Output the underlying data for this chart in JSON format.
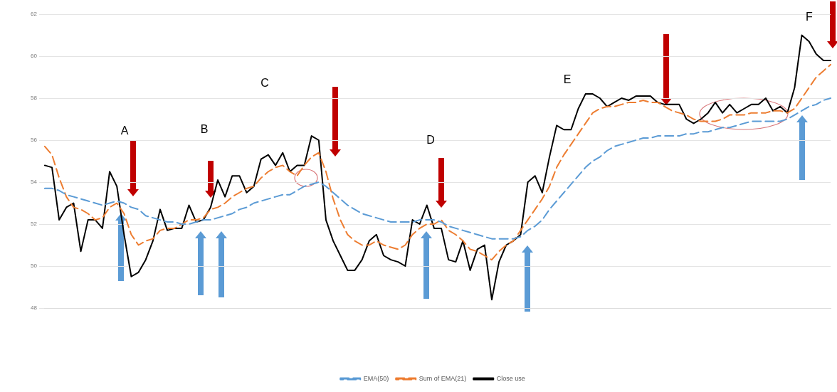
{
  "chart_data": {
    "type": "line",
    "categories": [
      null,
      null,
      null,
      null,
      null,
      null,
      null,
      null,
      null,
      null,
      null,
      null,
      null,
      null,
      null,
      null,
      null,
      null,
      null,
      null,
      null,
      null,
      null,
      null,
      null,
      null,
      null,
      null,
      null,
      null,
      null,
      null,
      null,
      null,
      null,
      null,
      null,
      null,
      null,
      null,
      null,
      null,
      null,
      null,
      null,
      null,
      null,
      null,
      null,
      null,
      null,
      null,
      null,
      null,
      null,
      null,
      null,
      null,
      null,
      null,
      null,
      null,
      null,
      null,
      null,
      null,
      null,
      null,
      null,
      null,
      null,
      null,
      null,
      null,
      null,
      null,
      null,
      null,
      null,
      null,
      null,
      null,
      null,
      null,
      null,
      null,
      null,
      null,
      null,
      null,
      null,
      null,
      null,
      null,
      null,
      null,
      null,
      null,
      null,
      null,
      null,
      null,
      null,
      null,
      null,
      null,
      null,
      null,
      null,
      null
    ],
    "series": [
      {
        "name": "EMA(50)",
        "color": "#5b9bd5",
        "line_style": "dashed",
        "values": [
          53.7,
          53.7,
          53.6,
          53.4,
          53.3,
          53.2,
          53.1,
          53.0,
          52.9,
          53.0,
          53.1,
          53.0,
          52.8,
          52.7,
          52.4,
          52.3,
          52.2,
          52.1,
          52.1,
          52.0,
          52.0,
          52.1,
          52.2,
          52.2,
          52.3,
          52.4,
          52.5,
          52.7,
          52.8,
          53.0,
          53.1,
          53.2,
          53.3,
          53.4,
          53.4,
          53.6,
          53.8,
          53.9,
          54.0,
          53.8,
          53.5,
          53.2,
          52.9,
          52.7,
          52.5,
          52.4,
          52.3,
          52.2,
          52.1,
          52.1,
          52.1,
          52.1,
          52.2,
          52.2,
          52.2,
          52.1,
          51.9,
          51.8,
          51.7,
          51.6,
          51.5,
          51.4,
          51.3,
          51.3,
          51.3,
          51.3,
          51.4,
          51.7,
          51.9,
          52.2,
          52.7,
          53.1,
          53.5,
          53.9,
          54.3,
          54.7,
          55.0,
          55.2,
          55.5,
          55.7,
          55.8,
          55.9,
          56.0,
          56.1,
          56.1,
          56.2,
          56.2,
          56.2,
          56.2,
          56.3,
          56.3,
          56.4,
          56.4,
          56.5,
          56.6,
          56.6,
          56.7,
          56.8,
          56.9,
          56.9,
          56.9,
          56.9,
          56.9,
          57.0,
          57.2,
          57.4,
          57.6,
          57.7,
          57.9,
          58.0
        ]
      },
      {
        "name": "Sum of EMA(21)",
        "color": "#ed7d31",
        "line_style": "dashed",
        "values": [
          55.7,
          55.3,
          54.2,
          53.3,
          52.8,
          52.7,
          52.5,
          52.2,
          52.3,
          52.8,
          53.0,
          52.5,
          51.5,
          51.0,
          51.2,
          51.3,
          51.7,
          51.8,
          51.8,
          52.0,
          52.2,
          52.2,
          52.3,
          52.7,
          52.8,
          53.0,
          53.3,
          53.5,
          53.7,
          53.8,
          54.2,
          54.5,
          54.7,
          54.8,
          54.5,
          54.3,
          54.8,
          55.2,
          55.4,
          54.5,
          53.2,
          52.2,
          51.5,
          51.2,
          51.0,
          51.0,
          51.2,
          51.0,
          50.9,
          50.8,
          51.0,
          51.5,
          51.8,
          52.0,
          52.0,
          52.2,
          51.7,
          51.5,
          51.2,
          50.8,
          50.7,
          50.5,
          50.3,
          50.7,
          51.0,
          51.2,
          51.7,
          52.2,
          52.7,
          53.2,
          53.8,
          54.7,
          55.3,
          55.8,
          56.3,
          56.8,
          57.3,
          57.5,
          57.6,
          57.6,
          57.7,
          57.8,
          57.8,
          57.9,
          57.8,
          57.8,
          57.6,
          57.4,
          57.3,
          57.2,
          57.0,
          56.9,
          56.9,
          56.9,
          57.0,
          57.2,
          57.2,
          57.2,
          57.3,
          57.3,
          57.3,
          57.4,
          57.4,
          57.3,
          57.5,
          58.0,
          58.5,
          59.0,
          59.3,
          59.6
        ]
      },
      {
        "name": "Close use",
        "color": "#000000",
        "line_style": "solid",
        "values": [
          54.8,
          54.7,
          52.2,
          52.8,
          53.0,
          50.7,
          52.2,
          52.2,
          51.8,
          54.5,
          53.8,
          51.5,
          49.5,
          49.7,
          50.3,
          51.2,
          52.7,
          51.7,
          51.8,
          51.8,
          52.9,
          52.1,
          52.2,
          52.8,
          54.1,
          53.3,
          54.3,
          54.3,
          53.5,
          53.8,
          55.1,
          55.3,
          54.8,
          55.4,
          54.5,
          54.8,
          54.8,
          56.2,
          56.0,
          52.2,
          51.2,
          50.5,
          49.8,
          49.8,
          50.3,
          51.2,
          51.5,
          50.5,
          50.3,
          50.2,
          50.0,
          52.2,
          52.0,
          52.9,
          51.8,
          51.8,
          50.3,
          50.2,
          51.2,
          49.8,
          50.8,
          51.0,
          48.4,
          50.2,
          51.0,
          51.2,
          51.5,
          54.0,
          54.3,
          53.5,
          55.2,
          56.7,
          56.5,
          56.5,
          57.5,
          58.2,
          58.2,
          58.0,
          57.6,
          57.8,
          58.0,
          57.9,
          58.1,
          58.1,
          58.1,
          57.8,
          57.7,
          57.7,
          57.7,
          57.0,
          56.8,
          57.0,
          57.3,
          57.8,
          57.3,
          57.7,
          57.3,
          57.5,
          57.7,
          57.7,
          58.0,
          57.4,
          57.6,
          57.3,
          58.5,
          61.0,
          60.7,
          60.1,
          59.8,
          59.8
        ]
      }
    ],
    "ylim": [
      48,
      62
    ],
    "yticks": [
      48,
      50,
      52,
      54,
      56,
      58,
      60,
      62
    ],
    "grid": "y",
    "legend": "bottom",
    "marker": "none",
    "annotations": [
      "A",
      "B",
      "C",
      "D",
      "E",
      "F"
    ]
  }
}
